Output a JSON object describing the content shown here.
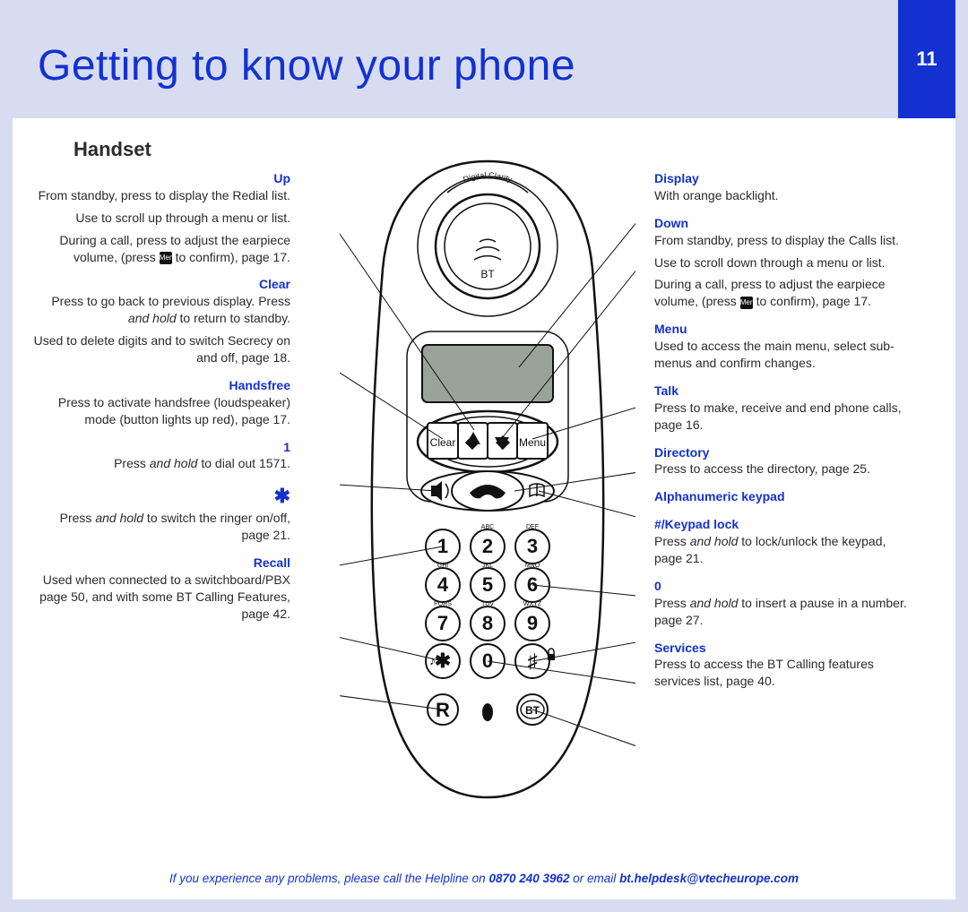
{
  "header": {
    "title": "Getting to know your phone",
    "page_number": "11"
  },
  "subheading": "Handset",
  "left_labels": {
    "up": {
      "title": "Up",
      "p1": "From standby, press to display the Redial list.",
      "p2": "Use to scroll up through a menu or list.",
      "p3a": "During a call, press to adjust the earpiece volume, (press ",
      "p3b": " to confirm), page 17."
    },
    "clear": {
      "title": "Clear",
      "p1a": "Press to go back to previous display. Press ",
      "p1b": "and hold",
      "p1c": " to return to standby.",
      "p2": "Used to delete digits and to switch Secrecy on and off, page 18."
    },
    "handsfree": {
      "title": "Handsfree",
      "p1": "Press to activate handsfree (loudspeaker) mode (button lights up red), page 17."
    },
    "one": {
      "title": "1",
      "p1a": "Press ",
      "p1b": "and hold",
      "p1c": " to dial out 1571."
    },
    "star": {
      "title": "✱",
      "p1a": "Press ",
      "p1b": "and hold",
      "p1c": " to switch the ringer on/off, page 21."
    },
    "recall": {
      "title": "Recall",
      "p1": "Used when connected to a switchboard/PBX page 50, and with some BT Calling Features, page 42."
    }
  },
  "right_labels": {
    "display": {
      "title": "Display",
      "p1": "With orange backlight."
    },
    "down": {
      "title": "Down",
      "p1": "From standby, press to display the Calls list.",
      "p2": "Use to scroll down through a menu or list.",
      "p3a": "During a call, press to adjust the earpiece volume, (press ",
      "p3b": " to confirm), page 17."
    },
    "menu": {
      "title": "Menu",
      "p1": "Used to access the main menu, select sub-menus and confirm changes."
    },
    "talk": {
      "title": "Talk",
      "p1": "Press to make, receive and end phone calls, page 16."
    },
    "directory": {
      "title": "Directory",
      "p1": "Press to access the directory, page 25."
    },
    "alphanumeric": {
      "title": "Alphanumeric keypad"
    },
    "keypadlock": {
      "title": "#/Keypad lock",
      "p1a": "Press ",
      "p1b": "and hold",
      "p1c": " to lock/unlock the keypad, page 21."
    },
    "zero": {
      "title": "0",
      "p1a": "Press ",
      "p1b": "and hold",
      "p1c": " to insert a pause in a number. page 27."
    },
    "services": {
      "title": "Services",
      "p1": "Press to access the BT Calling features services list, page 40."
    }
  },
  "footer": {
    "prefix": "If you experience any problems, please call the Helpline on ",
    "phone": "0870 240 3962",
    "middle": " or email ",
    "email": "bt.helpdesk@vtecheurope.com"
  },
  "phone_buttons": {
    "clear": "Clear",
    "menu": "Menu",
    "keys": [
      "1",
      "2",
      "3",
      "4",
      "5",
      "6",
      "7",
      "8",
      "9",
      "✱",
      "0",
      "♯"
    ],
    "sublabels": [
      "",
      "ABC",
      "DEF",
      "GHI",
      "JKL",
      "MNO",
      "PQRS",
      "TUV",
      "WXYZ",
      "",
      "",
      ""
    ],
    "recall": "R",
    "bt": "BT",
    "brand": "BT",
    "tagline": "Digital Clarity"
  },
  "colors": {
    "brand_blue": "#1331d1",
    "panel_lavender": "#d7dcf1",
    "screen_gray": "#9aa39a",
    "outline": "#111111"
  }
}
